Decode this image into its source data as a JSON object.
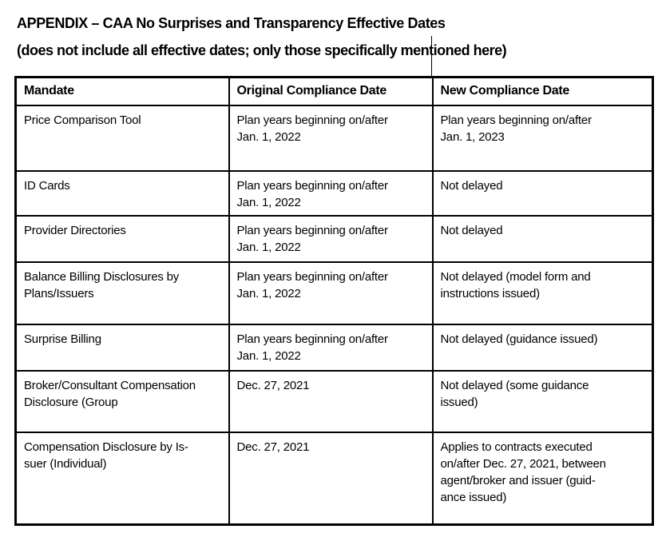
{
  "document": {
    "title": "APPENDIX – CAA No Surprises and Transparency Effective Dates",
    "subtitle": "(does not include all effective dates; only those specifically mentioned here)"
  },
  "colors": {
    "text": "#000000",
    "background": "#ffffff",
    "border": "#000000"
  },
  "table": {
    "columns": [
      "Mandate",
      "Original Compliance Date",
      "New Compliance Date"
    ],
    "rows": [
      {
        "mandate": "Price Comparison Tool",
        "original": "Plan years beginning on/after\nJan. 1, 2022",
        "new": "Plan years beginning on/after\nJan. 1, 2023"
      },
      {
        "mandate": "ID Cards",
        "original": "Plan years beginning on/after\nJan. 1, 2022",
        "new": "Not delayed"
      },
      {
        "mandate": "Provider Directories",
        "original": "Plan years beginning on/after\nJan. 1, 2022",
        "new": "Not delayed"
      },
      {
        "mandate": "Balance Billing Disclosures by\nPlans/Issuers",
        "original": "Plan years beginning on/after\nJan. 1, 2022",
        "new": "Not delayed (model form and\ninstructions issued)"
      },
      {
        "mandate": "Surprise Billing",
        "original": "Plan years beginning on/after\nJan. 1, 2022",
        "new": "Not delayed (guidance issued)"
      },
      {
        "mandate": "Broker/Consultant Compensation\nDisclosure (Group",
        "original": "Dec. 27, 2021",
        "new": "Not delayed (some guidance\nissued)"
      },
      {
        "mandate": "Compensation Disclosure by Is-\nsuer (Individual)",
        "original": "Dec. 27, 2021",
        "new": "Applies to contracts executed\non/after Dec. 27, 2021, between\nagent/broker and issuer (guid-\nance issued)"
      }
    ]
  }
}
